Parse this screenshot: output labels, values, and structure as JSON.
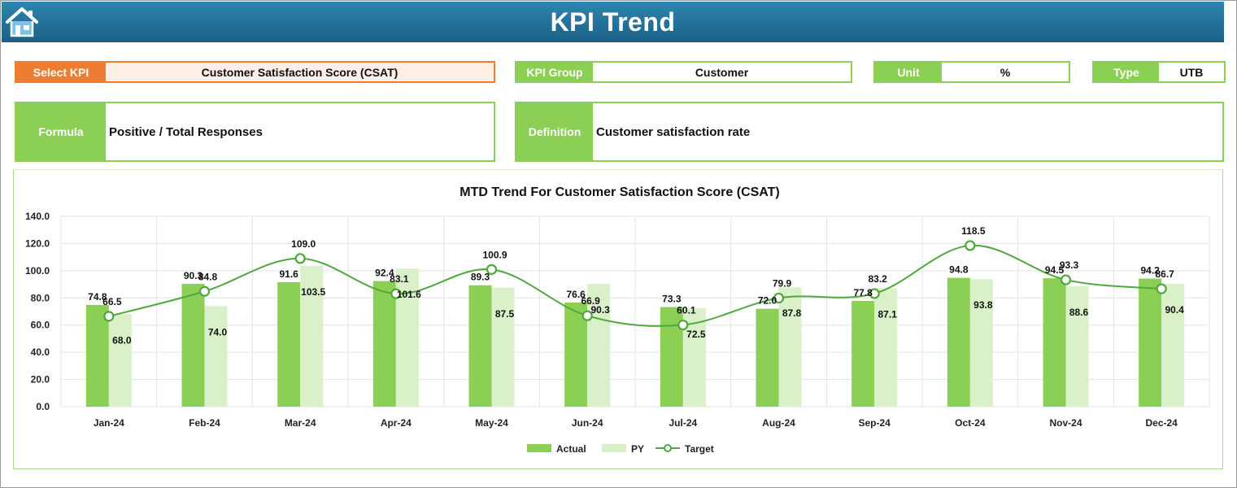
{
  "header": {
    "title": "KPI Trend",
    "home_icon": "home-icon"
  },
  "fields": {
    "select_kpi": {
      "label": "Select KPI",
      "value": "Customer Satisfaction Score (CSAT)"
    },
    "kpi_group": {
      "label": "KPI Group",
      "value": "Customer"
    },
    "unit": {
      "label": "Unit",
      "value": "%"
    },
    "type": {
      "label": "Type",
      "value": "UTB"
    },
    "formula": {
      "label": "Formula",
      "value": "Positive / Total Responses"
    },
    "definition": {
      "label": "Definition",
      "value": "Customer satisfaction rate"
    }
  },
  "colors": {
    "actual": "#8ccf55",
    "py": "#d9f0c8",
    "target": "#4fa83d",
    "header": "#1f6f96",
    "accent_orange": "#ed7d31"
  },
  "chart_data": {
    "type": "bar",
    "title": "MTD Trend For Customer Satisfaction Score (CSAT)",
    "categories": [
      "Jan-24",
      "Feb-24",
      "Mar-24",
      "Apr-24",
      "May-24",
      "Jun-24",
      "Jul-24",
      "Aug-24",
      "Sep-24",
      "Oct-24",
      "Nov-24",
      "Dec-24"
    ],
    "series": [
      {
        "name": "Actual",
        "type": "bar",
        "values": [
          74.8,
          90.3,
          91.6,
          92.4,
          89.3,
          76.6,
          73.3,
          72.0,
          77.8,
          94.8,
          94.5,
          94.2
        ]
      },
      {
        "name": "PY",
        "type": "bar",
        "values": [
          68.0,
          74.0,
          103.5,
          101.6,
          87.5,
          90.3,
          72.5,
          87.8,
          87.1,
          93.8,
          88.6,
          90.4
        ]
      },
      {
        "name": "Target",
        "type": "line",
        "values": [
          66.5,
          84.8,
          109.0,
          83.1,
          100.9,
          66.9,
          60.1,
          79.9,
          83.2,
          118.5,
          93.3,
          86.7
        ]
      }
    ],
    "yticks": [
      "0.0",
      "20.0",
      "40.0",
      "60.0",
      "80.0",
      "100.0",
      "120.0",
      "140.0"
    ],
    "ylim": [
      0,
      140
    ],
    "grid": true,
    "legend": "bottom"
  }
}
